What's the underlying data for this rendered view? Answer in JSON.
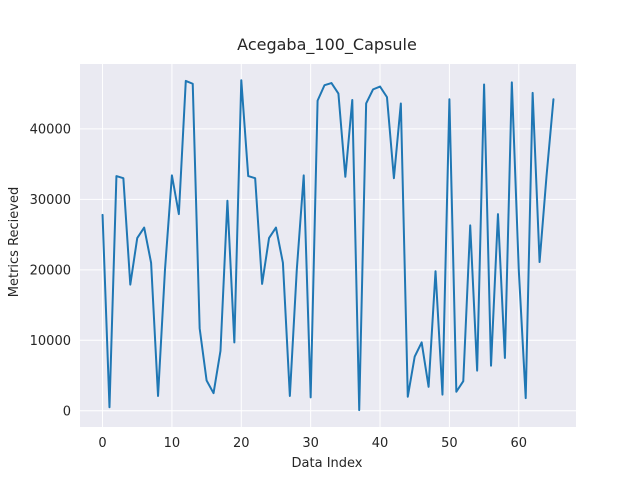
{
  "chart_data": {
    "type": "line",
    "title": "Acegaba_100_Capsule",
    "xlabel": "Data Index",
    "ylabel": "Metrics Recieved",
    "xlim": [
      -3.25,
      68.25
    ],
    "ylim": [
      -2300,
      49200
    ],
    "xticks": [
      0,
      10,
      20,
      30,
      40,
      50,
      60
    ],
    "yticks": [
      0,
      10000,
      20000,
      30000,
      40000
    ],
    "grid": true,
    "legend": "none",
    "colors": {
      "plot_bg": "#eaeaf2",
      "line": "#1f77b4"
    },
    "series": [
      {
        "x": [
          0,
          1,
          2,
          3,
          4,
          5,
          6,
          7,
          8,
          9,
          10,
          11,
          12,
          13,
          14,
          15,
          16,
          17,
          18,
          19,
          20,
          21,
          22,
          23,
          24,
          25,
          26,
          27,
          28,
          29,
          30,
          31,
          32,
          33,
          34,
          35,
          36,
          37,
          38,
          39,
          40,
          41,
          42,
          43,
          44,
          45,
          46,
          47,
          48,
          49,
          50,
          51,
          52,
          53,
          54,
          55,
          56,
          57,
          58,
          59,
          60,
          61,
          62,
          63,
          64,
          65
        ],
        "values": [
          27800,
          500,
          33300,
          33000,
          17900,
          24500,
          26000,
          21000,
          2100,
          20000,
          33400,
          27900,
          46800,
          46400,
          11700,
          4300,
          2500,
          8500,
          29800,
          9700,
          46900,
          33300,
          33000,
          18000,
          24500,
          26000,
          21000,
          2100,
          20000,
          33400,
          1900,
          44000,
          46200,
          46500,
          45000,
          33200,
          44100,
          100,
          43600,
          45600,
          46000,
          44500,
          33000,
          43600,
          2000,
          7700,
          9700,
          3400,
          19800,
          2300,
          44200,
          2700,
          4200,
          26300,
          5700,
          46300,
          6400,
          27900,
          7500,
          46600,
          20000,
          1800,
          45100,
          21100,
          33300,
          44200
        ]
      }
    ]
  }
}
